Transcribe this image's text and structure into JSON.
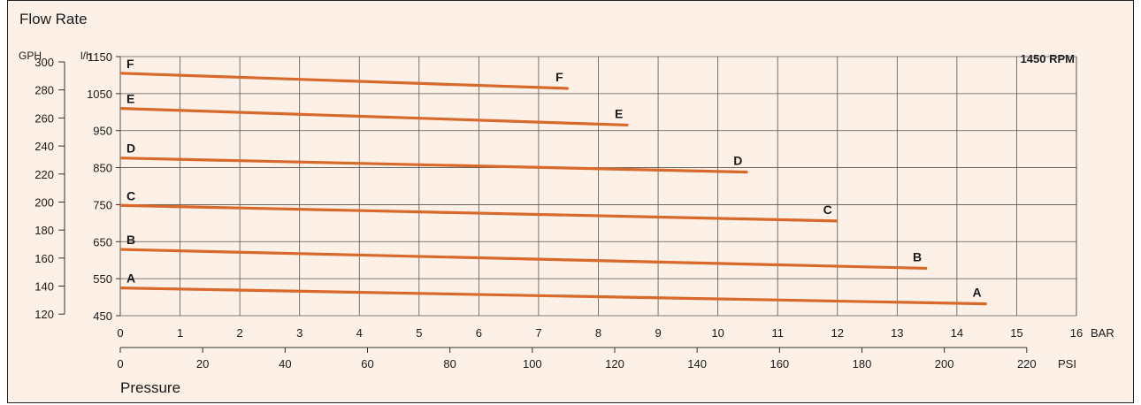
{
  "chart_data": {
    "type": "line",
    "title": "Flow Rate",
    "xlabel": "Pressure",
    "speed_label": "1450 RPM",
    "x_axis_primary": {
      "unit": "BAR",
      "range": [
        0,
        16
      ],
      "ticks": [
        0,
        1,
        2,
        3,
        4,
        5,
        6,
        7,
        8,
        9,
        10,
        11,
        12,
        13,
        14,
        15,
        16
      ]
    },
    "x_axis_secondary": {
      "unit": "PSI",
      "ticks": [
        0,
        20,
        40,
        60,
        80,
        100,
        120,
        140,
        160,
        180,
        200,
        220
      ]
    },
    "y_axis_primary": {
      "unit": "l/h",
      "range": [
        450,
        1150
      ],
      "ticks": [
        450,
        550,
        650,
        750,
        850,
        950,
        1050,
        1150
      ]
    },
    "y_axis_secondary": {
      "unit": "GPH",
      "ticks": [
        120,
        140,
        160,
        180,
        200,
        220,
        240,
        260,
        280,
        300
      ]
    },
    "series": [
      {
        "name": "A",
        "color": "#d9692a",
        "x": [
          0,
          14.5
        ],
        "y": [
          525,
          482
        ]
      },
      {
        "name": "B",
        "color": "#d9692a",
        "x": [
          0,
          13.5
        ],
        "y": [
          629,
          578
        ]
      },
      {
        "name": "C",
        "color": "#d9692a",
        "x": [
          0,
          12
        ],
        "y": [
          748,
          706
        ]
      },
      {
        "name": "D",
        "color": "#d9692a",
        "x": [
          0,
          10.5
        ],
        "y": [
          876,
          838
        ]
      },
      {
        "name": "E",
        "color": "#d9692a",
        "x": [
          0,
          8.5
        ],
        "y": [
          1010,
          965
        ]
      },
      {
        "name": "F",
        "color": "#d9692a",
        "x": [
          0,
          7.5
        ],
        "y": [
          1105,
          1064
        ]
      }
    ],
    "grid": true
  }
}
